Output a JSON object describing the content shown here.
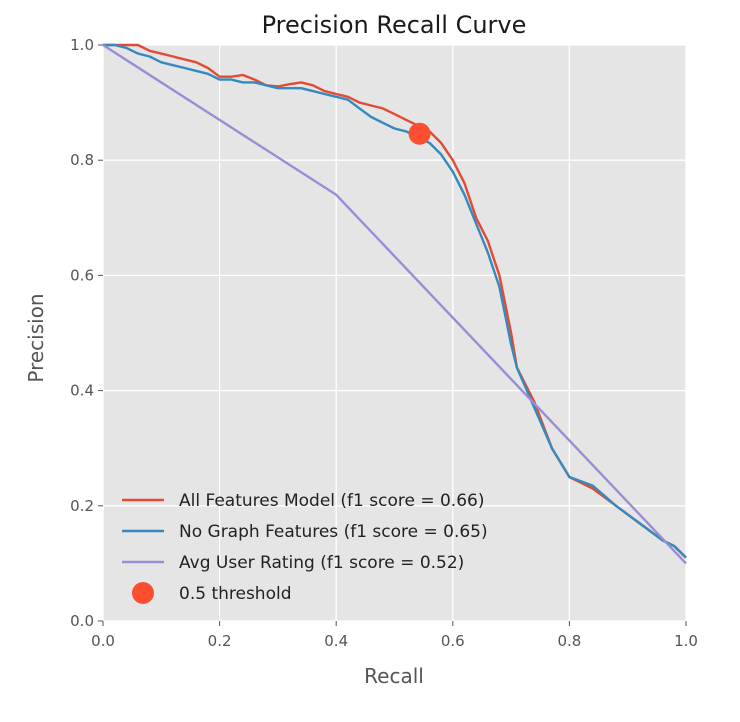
{
  "chart_data": {
    "type": "line",
    "title": "Precision Recall Curve",
    "xlabel": "Recall",
    "ylabel": "Precision",
    "xlim": [
      0.0,
      1.0
    ],
    "ylim": [
      0.0,
      1.0
    ],
    "xticks": [
      "0.0",
      "0.2",
      "0.4",
      "0.6",
      "0.8",
      "1.0"
    ],
    "yticks": [
      "0.0",
      "0.2",
      "0.4",
      "0.6",
      "0.8",
      "1.0"
    ],
    "grid": true,
    "legend_position": "lower-left",
    "series": [
      {
        "name": "All Features Model (f1 score = 0.66)",
        "color": "#e24a33",
        "points": [
          [
            0.0,
            1.0
          ],
          [
            0.02,
            1.0
          ],
          [
            0.04,
            1.0
          ],
          [
            0.06,
            1.0
          ],
          [
            0.08,
            0.99
          ],
          [
            0.1,
            0.985
          ],
          [
            0.12,
            0.98
          ],
          [
            0.14,
            0.975
          ],
          [
            0.16,
            0.97
          ],
          [
            0.18,
            0.96
          ],
          [
            0.2,
            0.945
          ],
          [
            0.22,
            0.945
          ],
          [
            0.24,
            0.948
          ],
          [
            0.26,
            0.94
          ],
          [
            0.28,
            0.93
          ],
          [
            0.3,
            0.928
          ],
          [
            0.32,
            0.932
          ],
          [
            0.34,
            0.935
          ],
          [
            0.36,
            0.93
          ],
          [
            0.38,
            0.92
          ],
          [
            0.4,
            0.915
          ],
          [
            0.42,
            0.91
          ],
          [
            0.44,
            0.9
          ],
          [
            0.46,
            0.895
          ],
          [
            0.48,
            0.89
          ],
          [
            0.5,
            0.88
          ],
          [
            0.52,
            0.87
          ],
          [
            0.54,
            0.86
          ],
          [
            0.56,
            0.85
          ],
          [
            0.58,
            0.83
          ],
          [
            0.6,
            0.8
          ],
          [
            0.62,
            0.76
          ],
          [
            0.64,
            0.7
          ],
          [
            0.66,
            0.66
          ],
          [
            0.68,
            0.6
          ],
          [
            0.69,
            0.55
          ],
          [
            0.7,
            0.5
          ],
          [
            0.71,
            0.44
          ],
          [
            0.74,
            0.38
          ],
          [
            0.77,
            0.3
          ],
          [
            0.8,
            0.25
          ],
          [
            0.84,
            0.23
          ],
          [
            0.88,
            0.2
          ],
          [
            0.92,
            0.17
          ],
          [
            0.96,
            0.14
          ],
          [
            0.98,
            0.13
          ],
          [
            1.0,
            0.11
          ]
        ]
      },
      {
        "name": "No Graph Features (f1 score = 0.65)",
        "color": "#348abd",
        "points": [
          [
            0.0,
            1.0
          ],
          [
            0.02,
            1.0
          ],
          [
            0.04,
            0.995
          ],
          [
            0.06,
            0.985
          ],
          [
            0.08,
            0.98
          ],
          [
            0.1,
            0.97
          ],
          [
            0.12,
            0.965
          ],
          [
            0.14,
            0.96
          ],
          [
            0.16,
            0.955
          ],
          [
            0.18,
            0.95
          ],
          [
            0.2,
            0.94
          ],
          [
            0.22,
            0.94
          ],
          [
            0.24,
            0.935
          ],
          [
            0.26,
            0.935
          ],
          [
            0.28,
            0.93
          ],
          [
            0.3,
            0.925
          ],
          [
            0.32,
            0.925
          ],
          [
            0.34,
            0.925
          ],
          [
            0.36,
            0.92
          ],
          [
            0.38,
            0.915
          ],
          [
            0.4,
            0.91
          ],
          [
            0.42,
            0.905
          ],
          [
            0.44,
            0.89
          ],
          [
            0.46,
            0.875
          ],
          [
            0.48,
            0.865
          ],
          [
            0.5,
            0.855
          ],
          [
            0.52,
            0.85
          ],
          [
            0.54,
            0.84
          ],
          [
            0.56,
            0.83
          ],
          [
            0.58,
            0.81
          ],
          [
            0.6,
            0.78
          ],
          [
            0.62,
            0.74
          ],
          [
            0.64,
            0.69
          ],
          [
            0.66,
            0.64
          ],
          [
            0.68,
            0.58
          ],
          [
            0.69,
            0.53
          ],
          [
            0.7,
            0.48
          ],
          [
            0.71,
            0.44
          ],
          [
            0.74,
            0.37
          ],
          [
            0.77,
            0.3
          ],
          [
            0.8,
            0.25
          ],
          [
            0.84,
            0.235
          ],
          [
            0.88,
            0.2
          ],
          [
            0.92,
            0.17
          ],
          [
            0.96,
            0.14
          ],
          [
            0.98,
            0.13
          ],
          [
            1.0,
            0.11
          ]
        ]
      },
      {
        "name": "Avg User Rating (f1 score = 0.52)",
        "color": "#988ed5",
        "points": [
          [
            0.0,
            1.0
          ],
          [
            0.4,
            0.74
          ],
          [
            1.0,
            0.1
          ]
        ]
      }
    ],
    "markers": [
      {
        "name": "0.5 threshold",
        "color": "#fc4f30",
        "x": 0.543,
        "y": 0.846
      }
    ]
  }
}
